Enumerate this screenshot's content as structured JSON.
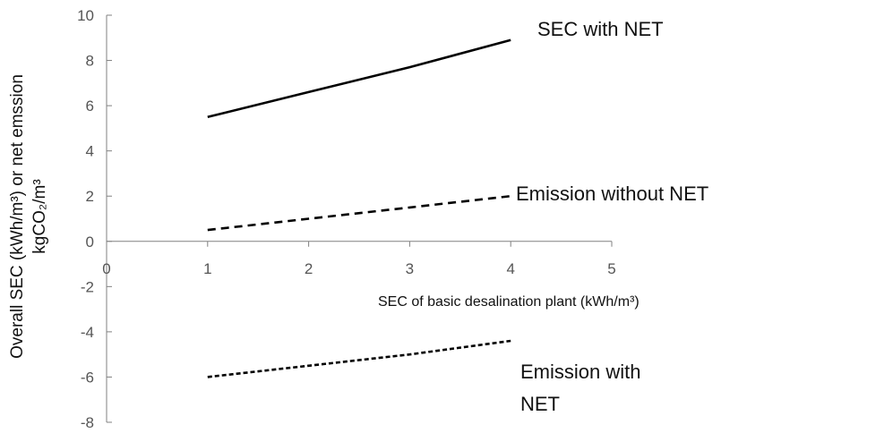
{
  "chart_data": {
    "type": "line",
    "xlabel": "SEC of basic desalination plant (kWh/m³)",
    "ylabel": [
      "Overall SEC (kWh/m³) or net emssion",
      "kgCO₂/m³"
    ],
    "xlim": [
      0,
      5
    ],
    "ylim": [
      -8,
      10
    ],
    "x_ticks": [
      0,
      1,
      2,
      3,
      4,
      5
    ],
    "y_ticks": [
      -8,
      -6,
      -4,
      -2,
      0,
      2,
      4,
      6,
      8,
      10
    ],
    "grid": false,
    "legend": "none",
    "series": [
      {
        "x": [
          1,
          2,
          3,
          4
        ],
        "y": [
          5.5,
          6.6,
          7.7,
          8.9
        ],
        "color": "#000000",
        "dash": "solid"
      },
      {
        "x": [
          1,
          2,
          3,
          4
        ],
        "y": [
          0.5,
          1.0,
          1.5,
          2.0
        ],
        "color": "#000000",
        "dash": "dashed"
      },
      {
        "x": [
          1,
          2,
          3,
          4
        ],
        "y": [
          -6.0,
          -5.5,
          -5.0,
          -4.4
        ],
        "color": "#000000",
        "dash": "dotted"
      }
    ],
    "annotations": [
      {
        "text": "SEC with NET"
      },
      {
        "text": "Emission without NET"
      },
      {
        "text": "Emission with"
      },
      {
        "text": "NET"
      }
    ]
  }
}
